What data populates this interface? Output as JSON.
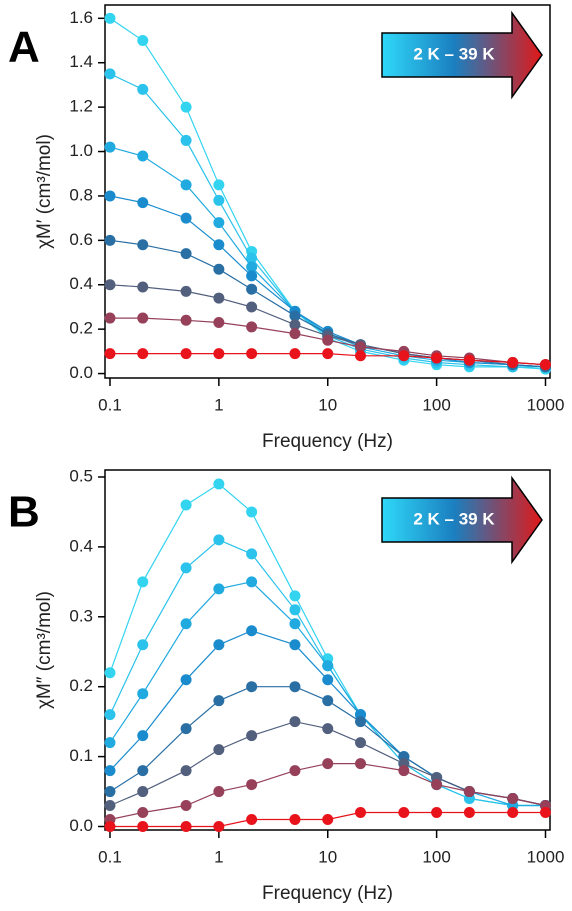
{
  "chart_data": [
    {
      "type": "line",
      "panel_label": "A",
      "annotation": "2 K – 39 K",
      "xlabel": "Frequency (Hz)",
      "ylabel": "χM′ (cm³/mol)",
      "xscale": "log",
      "x": [
        0.1,
        0.2,
        0.5,
        1,
        2,
        5,
        10,
        20,
        50,
        100,
        200,
        500,
        1000
      ],
      "xlim": [
        0.09,
        1100
      ],
      "xticks": [
        0.1,
        1,
        10,
        100,
        1000
      ],
      "ylim": [
        -0.02,
        1.66
      ],
      "yticks": [
        {
          "value": 0,
          "label": "0.0"
        },
        0.2,
        0.4,
        0.6,
        0.8,
        {
          "value": 1,
          "label": "1.0"
        },
        1.2,
        1.4,
        1.6
      ],
      "series": [
        {
          "color": "#33d4f0",
          "values": [
            1.6,
            1.5,
            1.2,
            0.85,
            0.55,
            0.28,
            0.16,
            0.1,
            0.06,
            0.04,
            0.03,
            0.03,
            0.02
          ]
        },
        {
          "color": "#2bc3ec",
          "values": [
            1.35,
            1.28,
            1.05,
            0.78,
            0.52,
            0.28,
            0.17,
            0.11,
            0.07,
            0.05,
            0.04,
            0.03,
            0.03
          ]
        },
        {
          "color": "#20aae0",
          "values": [
            1.02,
            0.98,
            0.85,
            0.68,
            0.48,
            0.28,
            0.18,
            0.12,
            0.08,
            0.06,
            0.05,
            0.04,
            0.03
          ]
        },
        {
          "color": "#1a8cce",
          "values": [
            0.8,
            0.77,
            0.7,
            0.58,
            0.44,
            0.28,
            0.19,
            0.13,
            0.09,
            0.07,
            0.05,
            0.04,
            0.03
          ]
        },
        {
          "color": "#2a6fa4",
          "values": [
            0.6,
            0.58,
            0.54,
            0.47,
            0.38,
            0.26,
            0.18,
            0.13,
            0.09,
            0.07,
            0.06,
            0.04,
            0.03
          ]
        },
        {
          "color": "#52607e",
          "values": [
            0.4,
            0.39,
            0.37,
            0.34,
            0.3,
            0.22,
            0.17,
            0.13,
            0.09,
            0.07,
            0.06,
            0.05,
            0.04
          ]
        },
        {
          "color": "#96405a",
          "values": [
            0.25,
            0.25,
            0.24,
            0.23,
            0.21,
            0.18,
            0.15,
            0.12,
            0.1,
            0.08,
            0.07,
            0.05,
            0.04
          ]
        },
        {
          "color": "#e8131b",
          "values": [
            0.09,
            0.09,
            0.09,
            0.09,
            0.09,
            0.09,
            0.09,
            0.08,
            0.08,
            0.07,
            0.06,
            0.05,
            0.04
          ]
        }
      ]
    },
    {
      "type": "line",
      "panel_label": "B",
      "annotation": "2 K – 39 K",
      "xlabel": "Frequency (Hz)",
      "ylabel": "χM″ (cm³/mol)",
      "xscale": "log",
      "x": [
        0.1,
        0.2,
        0.5,
        1,
        2,
        5,
        10,
        20,
        50,
        100,
        200,
        500,
        1000
      ],
      "xlim": [
        0.09,
        1100
      ],
      "xticks": [
        0.1,
        1,
        10,
        100,
        1000
      ],
      "ylim": [
        -0.005,
        0.51
      ],
      "yticks": [
        {
          "value": 0,
          "label": "0.0"
        },
        0.1,
        0.2,
        0.3,
        0.4,
        0.5
      ],
      "series": [
        {
          "color": "#33d4f0",
          "values": [
            0.22,
            0.35,
            0.46,
            0.49,
            0.45,
            0.33,
            0.24,
            0.16,
            0.09,
            0.06,
            0.04,
            0.03,
            0.03
          ]
        },
        {
          "color": "#2bc3ec",
          "values": [
            0.16,
            0.26,
            0.37,
            0.41,
            0.39,
            0.31,
            0.23,
            0.16,
            0.09,
            0.06,
            0.04,
            0.03,
            0.03
          ]
        },
        {
          "color": "#20aae0",
          "values": [
            0.12,
            0.19,
            0.29,
            0.34,
            0.35,
            0.29,
            0.23,
            0.16,
            0.1,
            0.07,
            0.05,
            0.03,
            0.03
          ]
        },
        {
          "color": "#1a8cce",
          "values": [
            0.08,
            0.13,
            0.21,
            0.26,
            0.28,
            0.26,
            0.21,
            0.16,
            0.1,
            0.07,
            0.05,
            0.04,
            0.03
          ]
        },
        {
          "color": "#2a6fa4",
          "values": [
            0.05,
            0.08,
            0.14,
            0.18,
            0.2,
            0.2,
            0.18,
            0.15,
            0.1,
            0.07,
            0.05,
            0.04,
            0.03
          ]
        },
        {
          "color": "#52607e",
          "values": [
            0.03,
            0.05,
            0.08,
            0.11,
            0.13,
            0.15,
            0.14,
            0.12,
            0.09,
            0.07,
            0.05,
            0.04,
            0.03
          ]
        },
        {
          "color": "#96405a",
          "values": [
            0.01,
            0.02,
            0.03,
            0.05,
            0.06,
            0.08,
            0.09,
            0.09,
            0.08,
            0.06,
            0.05,
            0.04,
            0.03
          ]
        },
        {
          "color": "#e8131b",
          "values": [
            0,
            0,
            0,
            0,
            0.01,
            0.01,
            0.01,
            0.02,
            0.02,
            0.02,
            0.02,
            0.02,
            0.02
          ]
        }
      ]
    }
  ]
}
